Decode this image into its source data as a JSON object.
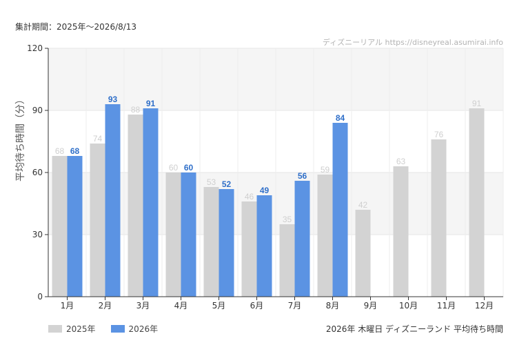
{
  "header": {
    "period": "集計期間：2025年～2026/8/13",
    "credit": "ディズニーリアル https://disneyreal.asumirai.info"
  },
  "footer": {
    "title": "2026年 木曜日 ディズニーランド 平均待ち時間"
  },
  "colors": {
    "series_2025": "#d3d3d3",
    "series_2026": "#5b93e3",
    "label_2025": "#cfcfcf",
    "label_2026": "#2f6fc9",
    "band": "#f5f5f5"
  },
  "chart_data": {
    "type": "bar",
    "ylabel": "平均待ち時間（分）",
    "ylim": [
      0,
      120
    ],
    "yticks": [
      0,
      30,
      60,
      90,
      120
    ],
    "grid": true,
    "legend_position": "bottom-left",
    "categories": [
      "1月",
      "2月",
      "3月",
      "4月",
      "5月",
      "6月",
      "7月",
      "8月",
      "9月",
      "10月",
      "11月",
      "12月"
    ],
    "series": [
      {
        "name": "2025年",
        "values": [
          68,
          74,
          88,
          60,
          53,
          46,
          35,
          59,
          42,
          63,
          76,
          91
        ]
      },
      {
        "name": "2026年",
        "values": [
          68,
          93,
          91,
          60,
          52,
          49,
          56,
          84,
          null,
          null,
          null,
          null
        ]
      }
    ]
  }
}
